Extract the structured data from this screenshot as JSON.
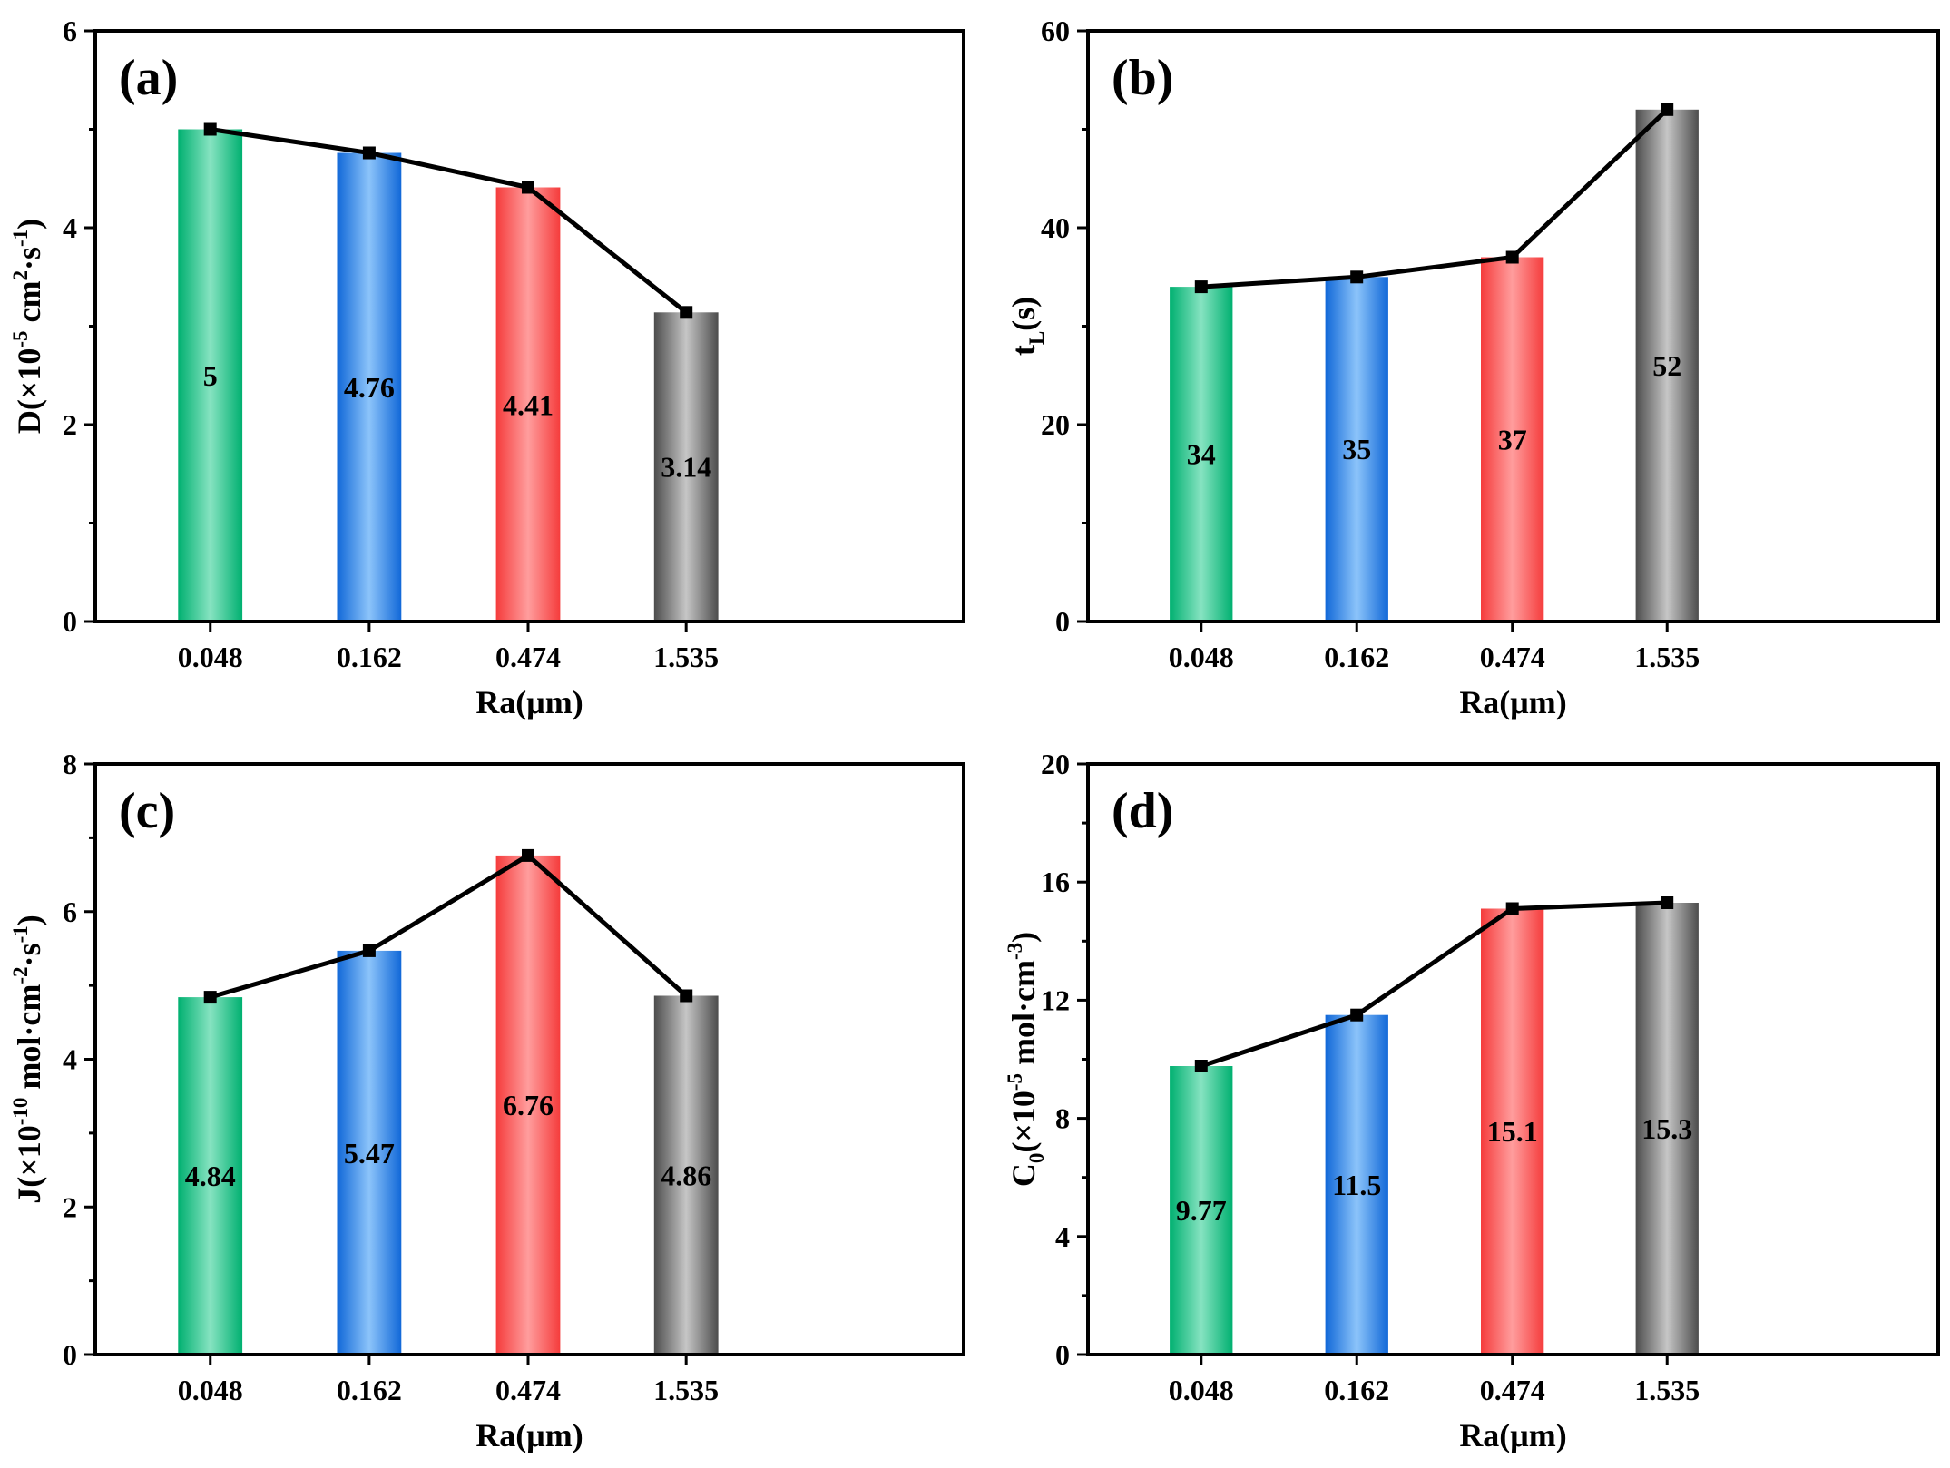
{
  "colors": {
    "series": [
      {
        "edge": "#00b070",
        "center": "#86e3c1"
      },
      {
        "edge": "#1168d8",
        "center": "#8cc4fa"
      },
      {
        "edge": "#f53c3c",
        "center": "#ff9d9d"
      },
      {
        "edge": "#4c4c4c",
        "center": "#c6c6c6"
      }
    ],
    "line": "#000000",
    "axis": "#000000"
  },
  "chart_data": [
    {
      "type": "bar",
      "panel": "(a)",
      "title": "",
      "categories": [
        "0.048",
        "0.162",
        "0.474",
        "1.535"
      ],
      "values": [
        5,
        4.76,
        4.41,
        3.14
      ],
      "value_labels": [
        "5",
        "4.76",
        "4.41",
        "3.14"
      ],
      "label_values": [
        2.5,
        2.38,
        2.2,
        1.57
      ],
      "line_values": [
        5,
        4.76,
        4.41,
        3.14
      ],
      "xlabel": "Ra(μm)",
      "ylabel": {
        "pre": "D(×10",
        "sup1": "-5",
        "mid": " cm",
        "sup2": "2",
        "mid2": "·s",
        "sup3": "-1",
        "post": ")"
      },
      "ylim": [
        0,
        6
      ],
      "yticks": [
        0,
        2,
        4,
        6
      ],
      "ytick_labels": [
        "0",
        "2",
        "4",
        "6"
      ],
      "grid": false,
      "legend": "none"
    },
    {
      "type": "bar",
      "panel": "(b)",
      "title": "",
      "categories": [
        "0.048",
        "0.162",
        "0.474",
        "1.535"
      ],
      "values": [
        34,
        35,
        37,
        52
      ],
      "value_labels": [
        "34",
        "35",
        "37",
        "52"
      ],
      "label_values": [
        17,
        17.5,
        18.5,
        26
      ],
      "line_values": [
        34,
        35,
        37,
        52
      ],
      "xlabel": "Ra(μm)",
      "ylabel": {
        "pre": "t",
        "sub1": "L",
        "post": "(s)"
      },
      "ylim": [
        0,
        60
      ],
      "yticks": [
        0,
        20,
        40,
        60
      ],
      "ytick_labels": [
        "0",
        "20",
        "40",
        "60"
      ],
      "grid": false,
      "legend": "none"
    },
    {
      "type": "bar",
      "panel": "(c)",
      "title": "",
      "categories": [
        "0.048",
        "0.162",
        "0.474",
        "1.535"
      ],
      "values": [
        4.84,
        5.47,
        6.76,
        4.86
      ],
      "value_labels": [
        "4.84",
        "5.47",
        "6.76",
        "4.86"
      ],
      "label_values": [
        2.42,
        2.73,
        3.38,
        2.43
      ],
      "line_values": [
        4.84,
        5.47,
        6.76,
        4.86
      ],
      "xlabel": "Ra(μm)",
      "ylabel": {
        "pre": "J(×10",
        "sup1": "-10",
        "mid": " mol·cm",
        "sup2": "-2",
        "mid2": "·s",
        "sup3": "-1",
        "post": ")"
      },
      "ylim": [
        0,
        8
      ],
      "yticks": [
        0,
        2,
        4,
        6,
        8
      ],
      "ytick_labels": [
        "0",
        "2",
        "4",
        "6",
        "8"
      ],
      "grid": false,
      "legend": "none"
    },
    {
      "type": "bar",
      "panel": "(d)",
      "title": "",
      "categories": [
        "0.048",
        "0.162",
        "0.474",
        "1.535"
      ],
      "values": [
        9.77,
        11.5,
        15.1,
        15.3
      ],
      "value_labels": [
        "9.77",
        "11.5",
        "15.1",
        "15.3"
      ],
      "label_values": [
        4.88,
        5.75,
        7.55,
        7.65
      ],
      "line_values": [
        9.77,
        11.5,
        15.1,
        15.3
      ],
      "xlabel": "Ra(μm)",
      "ylabel": {
        "pre": "C",
        "sub1": "0",
        "mid": "(×10",
        "sup2": "-5",
        "mid2": " mol·cm",
        "sup3": "-3",
        "post": ")"
      },
      "ylim": [
        0,
        20
      ],
      "yticks": [
        0,
        4,
        8,
        12,
        16,
        20
      ],
      "ytick_labels": [
        "0",
        "4",
        "8",
        "12",
        "16",
        "20"
      ],
      "grid": false,
      "legend": "none"
    }
  ]
}
